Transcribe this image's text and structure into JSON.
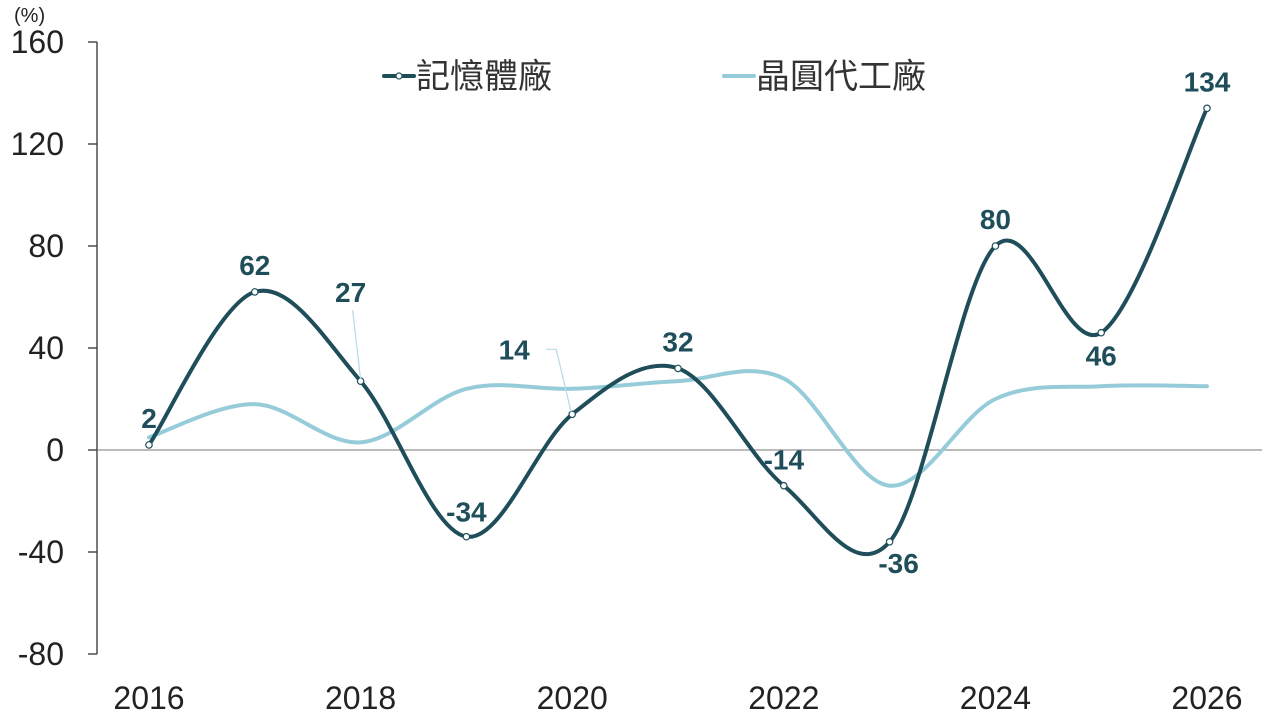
{
  "chart_data": {
    "type": "line",
    "unit_label": "(%)",
    "x": [
      2016,
      2017,
      2018,
      2019,
      2020,
      2021,
      2022,
      2023,
      2024,
      2025,
      2026
    ],
    "x_ticks": [
      "2016",
      "2018",
      "2020",
      "2022",
      "2024",
      "2026"
    ],
    "y_ticks": [
      "160",
      "120",
      "80",
      "40",
      "0",
      "-40",
      "-80"
    ],
    "ylim": [
      -80,
      160
    ],
    "grid": false,
    "legend_position": "top",
    "series": [
      {
        "name": "記憶體廠",
        "color": "#1F4E5A",
        "values": [
          2,
          62,
          27,
          -34,
          14,
          32,
          -14,
          -36,
          80,
          46,
          134
        ],
        "labels": [
          "2",
          "62",
          "27",
          "-34",
          "14",
          "32",
          "-14",
          "-36",
          "80",
          "46",
          "134"
        ],
        "markers": true
      },
      {
        "name": "晶圓代工廠",
        "color": "#96CCDA",
        "values": [
          5,
          18,
          3,
          24,
          24,
          27,
          28,
          -14,
          20,
          25,
          25
        ],
        "markers": false
      }
    ]
  }
}
